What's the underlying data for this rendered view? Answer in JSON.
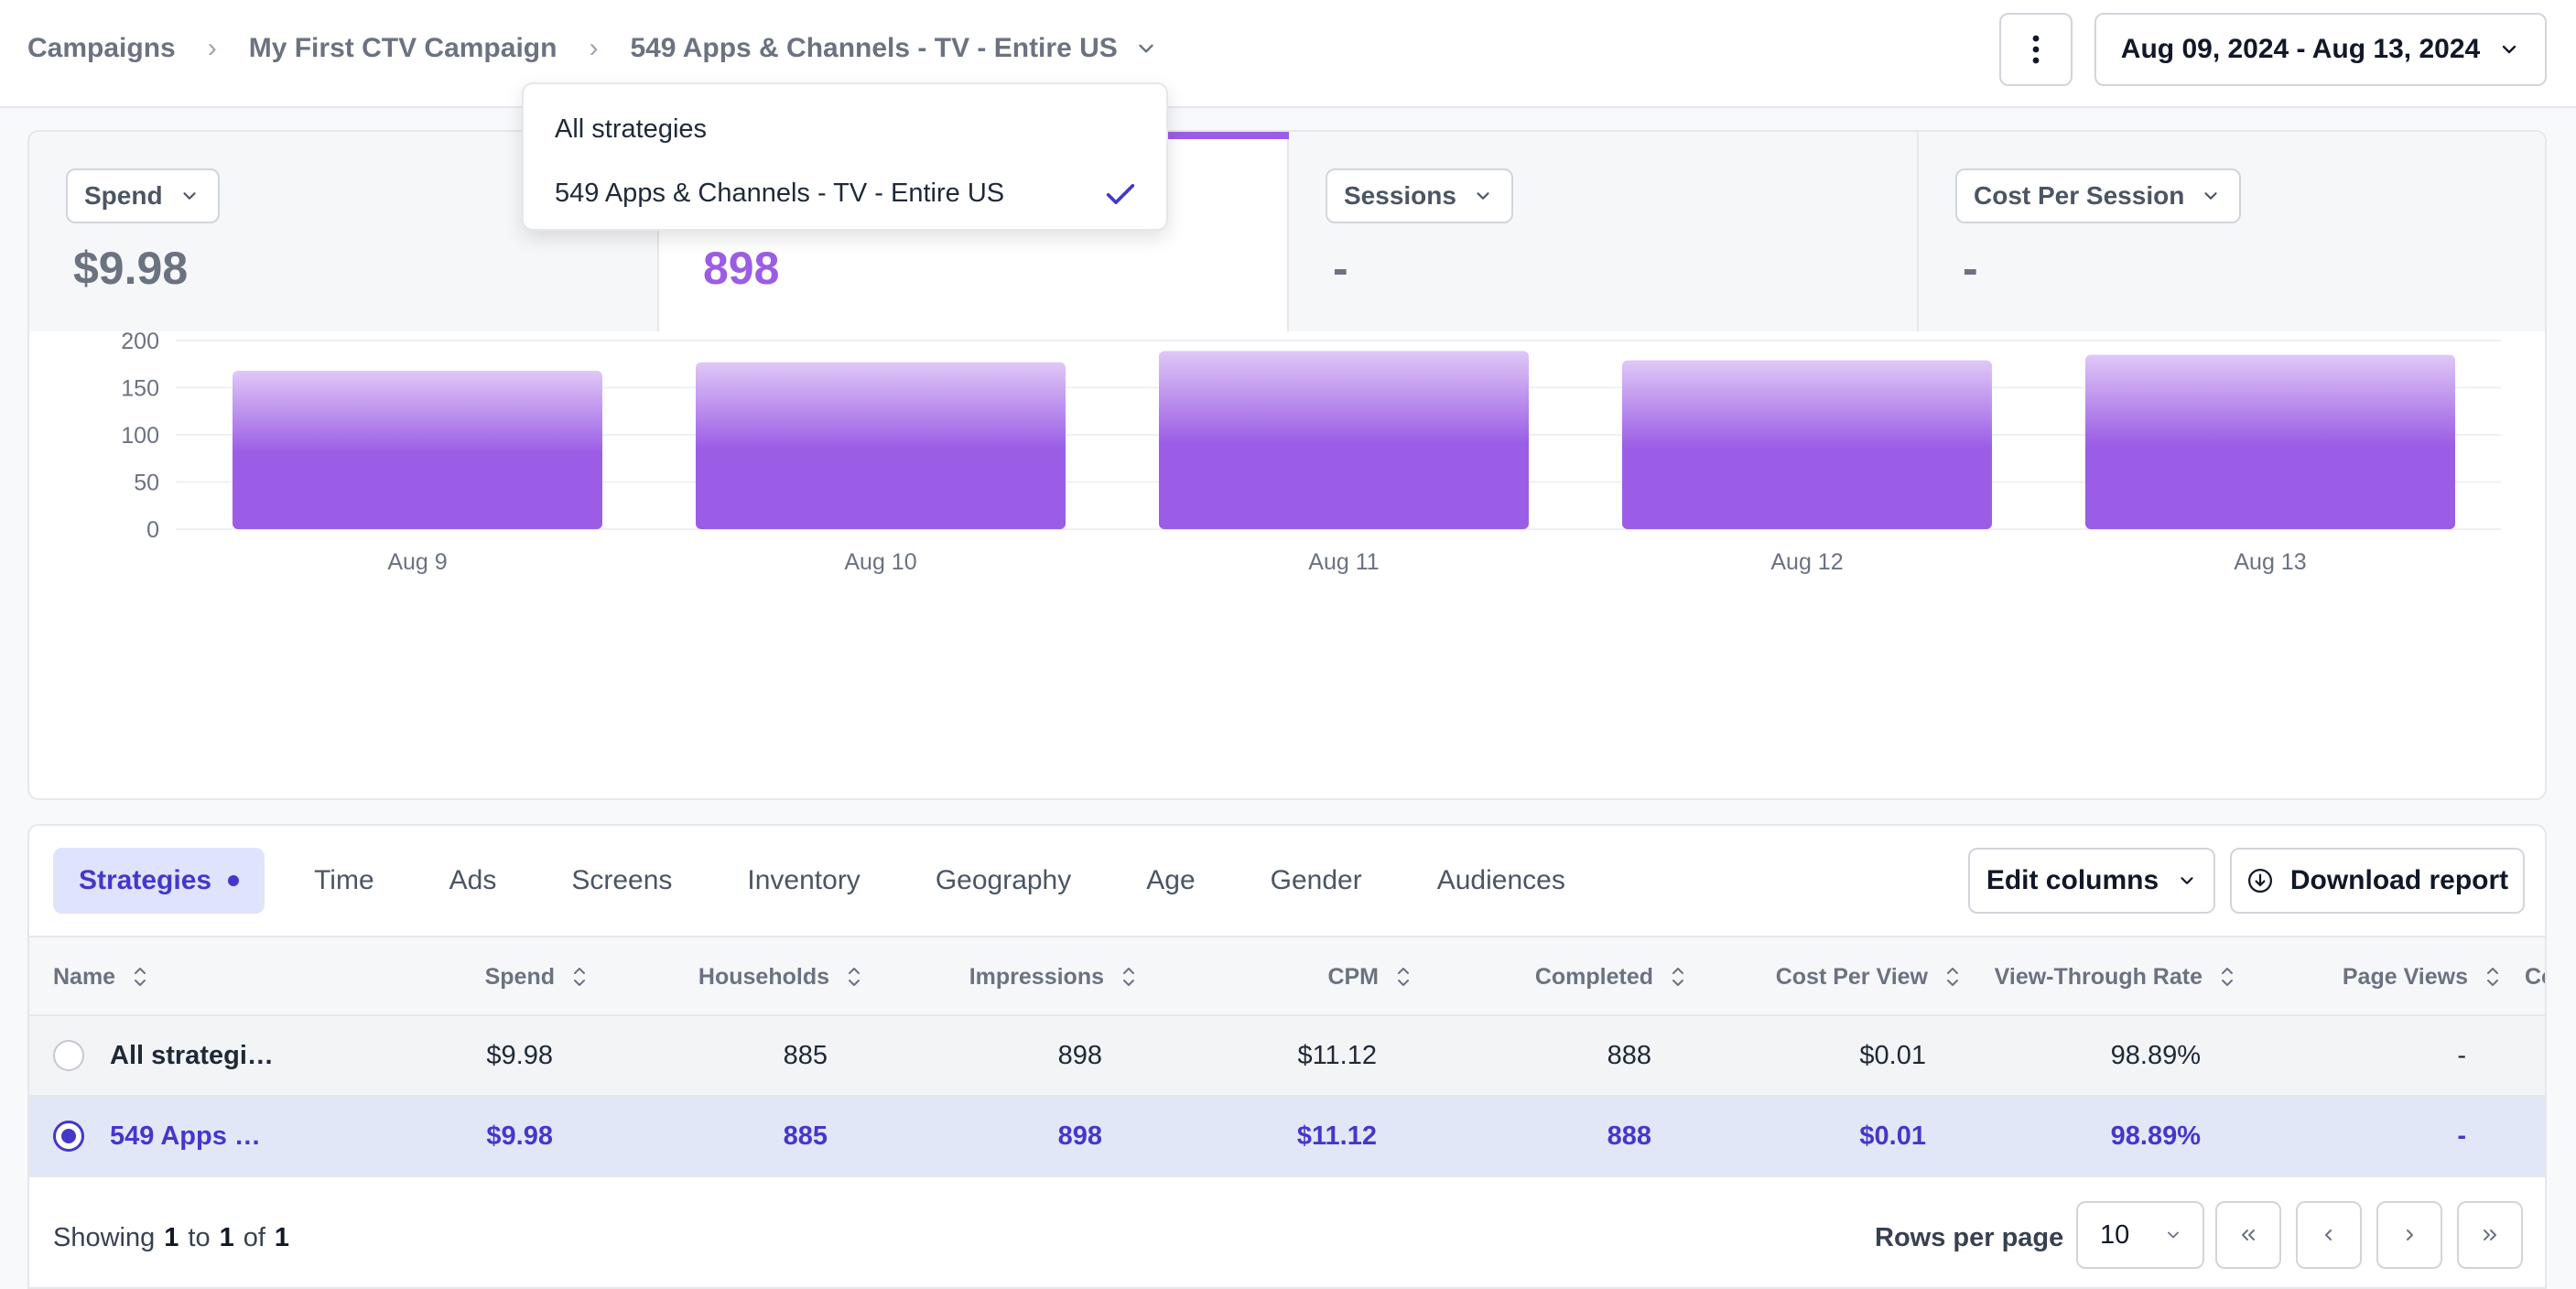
{
  "breadcrumbs": [
    "Campaigns",
    "My First CTV Campaign",
    "549 Apps & Channels - TV - Entire US"
  ],
  "header": {
    "date_range": "Aug 09, 2024 - Aug 13, 2024"
  },
  "dropdown": {
    "options": [
      "All strategies",
      "549 Apps & Channels - TV - Entire US"
    ],
    "selected": "549 Apps & Channels - TV - Entire US"
  },
  "metrics": [
    {
      "label": "Spend",
      "value": "$9.98"
    },
    {
      "label": "",
      "value": "898"
    },
    {
      "label": "Sessions",
      "value": "-"
    },
    {
      "label": "Cost Per Session",
      "value": "-"
    }
  ],
  "chart_data": {
    "type": "bar",
    "categories": [
      "Aug 9",
      "Aug 10",
      "Aug 11",
      "Aug 12",
      "Aug 13"
    ],
    "values": [
      168,
      177,
      189,
      179,
      185
    ],
    "y_ticks": [
      "200",
      "150",
      "100",
      "50",
      "0"
    ],
    "ylim": [
      0,
      200
    ],
    "grid": true,
    "colors": {
      "bar_top": "#e0c8f7",
      "bar_bottom": "#9b5de5",
      "grid": "#eef0f3"
    }
  },
  "tabs": [
    "Strategies",
    "Time",
    "Ads",
    "Screens",
    "Inventory",
    "Geography",
    "Age",
    "Gender",
    "Audiences"
  ],
  "toolbar": {
    "edit_columns": "Edit columns",
    "download": "Download report"
  },
  "table": {
    "columns": [
      "Name",
      "Spend",
      "Households",
      "Impressions",
      "CPM",
      "Completed",
      "Cost Per View",
      "View-Through Rate",
      "Page Views",
      "Co"
    ],
    "rows": [
      {
        "selected": false,
        "cells": [
          "All strategi…",
          "$9.98",
          "885",
          "898",
          "$11.12",
          "888",
          "$0.01",
          "98.89%",
          "-"
        ]
      },
      {
        "selected": true,
        "cells": [
          "549 Apps …",
          "$9.98",
          "885",
          "898",
          "$11.12",
          "888",
          "$0.01",
          "98.89%",
          "-"
        ]
      }
    ]
  },
  "footer": {
    "showing_prefix": "Showing",
    "from": "1",
    "to_word": "to",
    "to": "1",
    "of_word": "of",
    "total": "1",
    "rows_per_page_label": "Rows per page",
    "rows_per_page": "10"
  },
  "accent_color": "#9b5de5",
  "selection_color": "#4338ca"
}
